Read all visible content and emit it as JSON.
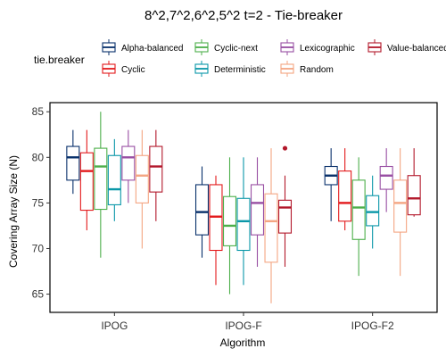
{
  "chart_data": {
    "type": "boxplot",
    "title": "8^2,7^2,6^2,5^2 t=2 - Tie-breaker",
    "xlabel": "Algorithm",
    "ylabel": "Covering Array Size (N)",
    "ylim": [
      63,
      86
    ],
    "yticks": [
      65,
      70,
      75,
      80,
      85
    ],
    "legend_title": "tie.breaker",
    "legend_position": "top",
    "categories": [
      "IPOG",
      "IPOG-F",
      "IPOG-F2"
    ],
    "series": [
      {
        "name": "Alpha-balanced",
        "color": "#08306b",
        "stats": [
          {
            "min": 76,
            "q1": 77.5,
            "median": 80,
            "q3": 81.2,
            "max": 83
          },
          {
            "min": 69,
            "q1": 71.5,
            "median": 74,
            "q3": 77,
            "max": 79
          },
          {
            "min": 73,
            "q1": 77,
            "median": 78,
            "q3": 79,
            "max": 81
          }
        ]
      },
      {
        "name": "Cyclic",
        "color": "#e31a1c",
        "stats": [
          {
            "min": 72,
            "q1": 74.2,
            "median": 78.5,
            "q3": 80.5,
            "max": 83
          },
          {
            "min": 66,
            "q1": 69.8,
            "median": 73.5,
            "q3": 77,
            "max": 78
          },
          {
            "min": 72,
            "q1": 73,
            "median": 75,
            "q3": 78.5,
            "max": 81
          }
        ]
      },
      {
        "name": "Cyclic-next",
        "color": "#4daf4a",
        "stats": [
          {
            "min": 69,
            "q1": 74.3,
            "median": 79,
            "q3": 81,
            "max": 85
          },
          {
            "min": 65,
            "q1": 70.3,
            "median": 72.5,
            "q3": 75.7,
            "max": 80
          },
          {
            "min": 67,
            "q1": 71,
            "median": 74.5,
            "q3": 77.5,
            "max": 80
          }
        ]
      },
      {
        "name": "Deterministic",
        "color": "#0a97a8",
        "stats": [
          {
            "min": 73,
            "q1": 74.8,
            "median": 76.5,
            "q3": 80.2,
            "max": 82
          },
          {
            "min": 66,
            "q1": 69.8,
            "median": 73,
            "q3": 75.5,
            "max": 80
          },
          {
            "min": 70,
            "q1": 72.5,
            "median": 74,
            "q3": 75.8,
            "max": 78
          }
        ]
      },
      {
        "name": "Lexicographic",
        "color": "#984ea3",
        "stats": [
          {
            "min": 75,
            "q1": 77.5,
            "median": 80,
            "q3": 81.2,
            "max": 83
          },
          {
            "min": 68,
            "q1": 71.5,
            "median": 75,
            "q3": 77,
            "max": 80
          },
          {
            "min": 74,
            "q1": 76.5,
            "median": 78,
            "q3": 79,
            "max": 81
          }
        ]
      },
      {
        "name": "Random",
        "color": "#f4a582",
        "stats": [
          {
            "min": 70,
            "q1": 75,
            "median": 78,
            "q3": 80.2,
            "max": 83
          },
          {
            "min": 64,
            "q1": 68.5,
            "median": 73,
            "q3": 76,
            "max": 81
          },
          {
            "min": 67,
            "q1": 71.8,
            "median": 75,
            "q3": 77.5,
            "max": 81
          }
        ]
      },
      {
        "name": "Value-balanced",
        "color": "#b2182b",
        "stats": [
          {
            "min": 73,
            "q1": 76.2,
            "median": 79,
            "q3": 81.2,
            "max": 83
          },
          {
            "min": 68,
            "q1": 71.7,
            "median": 74.5,
            "q3": 75.3,
            "max": 78,
            "outliers": [
              81
            ]
          },
          {
            "min": 73.5,
            "q1": 73.7,
            "median": 75.5,
            "q3": 78,
            "max": 81
          }
        ]
      }
    ]
  }
}
